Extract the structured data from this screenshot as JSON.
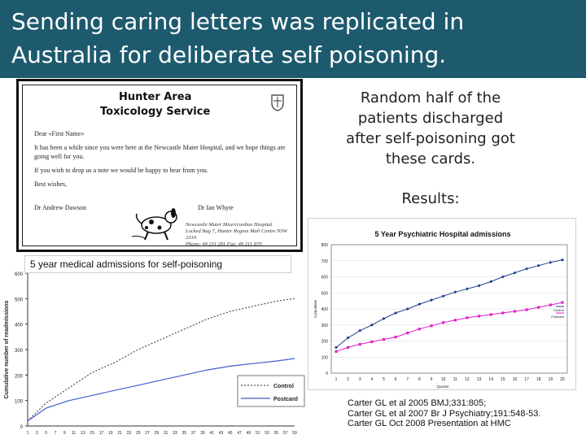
{
  "slide": {
    "title_line1": "Sending caring letters was replicated in",
    "title_line2": "Australia for deliberate self poisoning.",
    "side_text": "Random half of the patients discharged after self-poisoning got these cards.",
    "results_label": "Results:",
    "references": [
      "Carter GL et al 2005 BMJ;331:805;",
      "Carter GL et al 2007 Br J Psychiatry;191:548-53.",
      "Carter GL Oct 2008 Presentation at HMC"
    ]
  },
  "card": {
    "title_line1": "Hunter Area",
    "title_line2": "Toxicology Service",
    "greeting": "Dear «First Name»",
    "body1": "It has been a while since you were here at the Newcastle Mater Hospital, and we hope things are going well for you.",
    "body2": "If you wish to drop us a note we would be happy to hear from you.",
    "closing": "Best wishes,",
    "signer1": "Dr Andrew Dawson",
    "signer2": "Dr Ian Whyte",
    "address_line1": "Newcastle Mater Misericordiae Hospital",
    "address_line2": "Locked Bag 7, Hunter Region Mail Centre NSW 2310",
    "address_line3": "Phone: 49 211 281 Fax: 49 211 870"
  },
  "colors": {
    "title_bg": "#1e5a6e",
    "control_right": "#1f3f8f",
    "postcard_right": "#e020c8",
    "control_left": "#505050",
    "postcard_left": "#3f5fd0"
  },
  "chart_data": [
    {
      "type": "line",
      "title": "5 year medical admissions for self-poisoning",
      "ylabel": "Cumulative number of readmissions",
      "ylim": [
        0,
        600
      ],
      "yticks": [
        0,
        100,
        200,
        300,
        400,
        500,
        600
      ],
      "xticks": [
        "1",
        "3",
        "5",
        "7",
        "9",
        "11",
        "13",
        "15",
        "17",
        "19",
        "21",
        "23",
        "25",
        "27",
        "29",
        "31",
        "33",
        "35",
        "37",
        "39",
        "41",
        "43",
        "45",
        "47",
        "49",
        "51",
        "53",
        "55",
        "57",
        "59"
      ],
      "legend": [
        "Control",
        "Postcard"
      ],
      "legend_position": "bottom-right",
      "series": [
        {
          "name": "Control",
          "style": "dotted",
          "x": [
            1,
            5,
            10,
            15,
            20,
            25,
            30,
            35,
            40,
            45,
            50,
            55,
            59
          ],
          "values": [
            20,
            90,
            150,
            210,
            250,
            300,
            340,
            380,
            420,
            450,
            470,
            490,
            500
          ]
        },
        {
          "name": "Postcard",
          "style": "solid",
          "x": [
            1,
            5,
            10,
            15,
            20,
            25,
            30,
            35,
            40,
            45,
            50,
            55,
            59
          ],
          "values": [
            20,
            70,
            100,
            120,
            140,
            160,
            180,
            200,
            220,
            235,
            245,
            255,
            265
          ]
        }
      ]
    },
    {
      "type": "line",
      "title": "5 Year Psychiatric Hospital admissions",
      "ylabel": "Cumulative",
      "xlabel": "Quarter",
      "ylim": [
        0,
        800
      ],
      "yticks": [
        0,
        100,
        200,
        300,
        400,
        500,
        600,
        700,
        800
      ],
      "x": [
        1,
        2,
        3,
        4,
        5,
        6,
        7,
        8,
        9,
        10,
        11,
        12,
        13,
        14,
        15,
        16,
        17,
        18,
        19,
        20
      ],
      "legend": [
        "Control",
        "Postcard"
      ],
      "legend_position": "right",
      "series": [
        {
          "name": "Control",
          "values": [
            160,
            220,
            265,
            300,
            340,
            375,
            400,
            430,
            455,
            480,
            505,
            525,
            545,
            570,
            600,
            625,
            650,
            670,
            690,
            705
          ]
        },
        {
          "name": "Postcard",
          "values": [
            135,
            160,
            180,
            195,
            210,
            225,
            250,
            275,
            295,
            315,
            330,
            345,
            355,
            365,
            375,
            385,
            395,
            410,
            425,
            440
          ]
        }
      ]
    }
  ]
}
